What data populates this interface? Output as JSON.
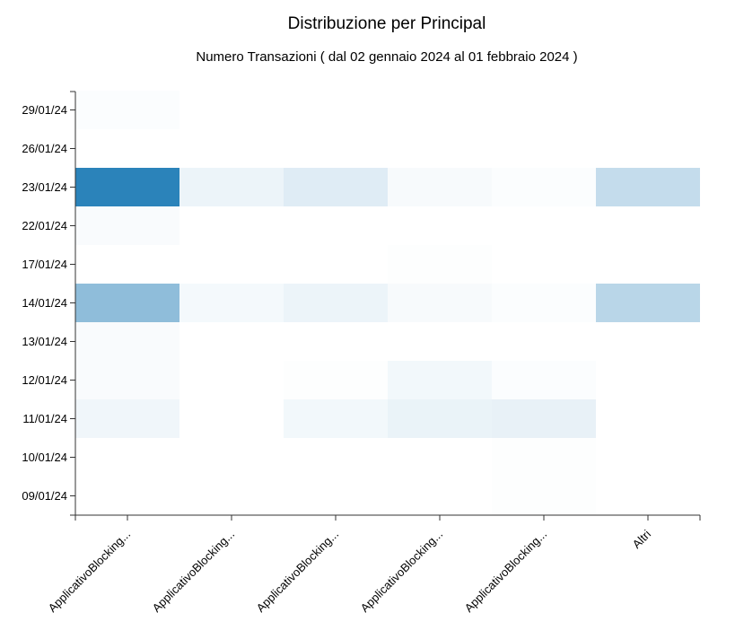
{
  "chart_data": {
    "type": "heatmap",
    "title": "Distribuzione per Principal",
    "subtitle": "Numero Transazioni ( dal 02 gennaio 2024 al 01 febbraio 2024 )",
    "x_categories": [
      "ApplicativoBlocking...",
      "ApplicativoBlocking...",
      "ApplicativoBlocking...",
      "ApplicativoBlocking...",
      "ApplicativoBlocking...",
      "Altri"
    ],
    "y_categories": [
      "29/01/24",
      "26/01/24",
      "23/01/24",
      "22/01/24",
      "17/01/24",
      "14/01/24",
      "13/01/24",
      "12/01/24",
      "11/01/24",
      "10/01/24",
      "09/01/24"
    ],
    "values": [
      [
        0.02,
        0.0,
        0.0,
        0.0,
        0.0,
        0.0
      ],
      [
        0.0,
        0.0,
        0.0,
        0.0,
        0.0,
        0.0
      ],
      [
        1.0,
        0.09,
        0.15,
        0.04,
        0.02,
        0.28
      ],
      [
        0.03,
        0.0,
        0.0,
        0.0,
        0.0,
        0.0
      ],
      [
        0.0,
        0.0,
        0.0,
        0.01,
        0.0,
        0.0
      ],
      [
        0.53,
        0.05,
        0.09,
        0.04,
        0.02,
        0.33
      ],
      [
        0.03,
        0.0,
        0.0,
        0.0,
        0.0,
        0.0
      ],
      [
        0.03,
        0.0,
        0.01,
        0.06,
        0.02,
        0.0
      ],
      [
        0.07,
        0.0,
        0.06,
        0.1,
        0.11,
        0.0
      ],
      [
        0.0,
        0.0,
        0.0,
        0.0,
        0.01,
        0.0
      ],
      [
        0.0,
        0.0,
        0.0,
        0.0,
        0.01,
        0.0
      ]
    ],
    "color_scale": {
      "low": "#ffffff",
      "high": "#2b83ba"
    }
  }
}
